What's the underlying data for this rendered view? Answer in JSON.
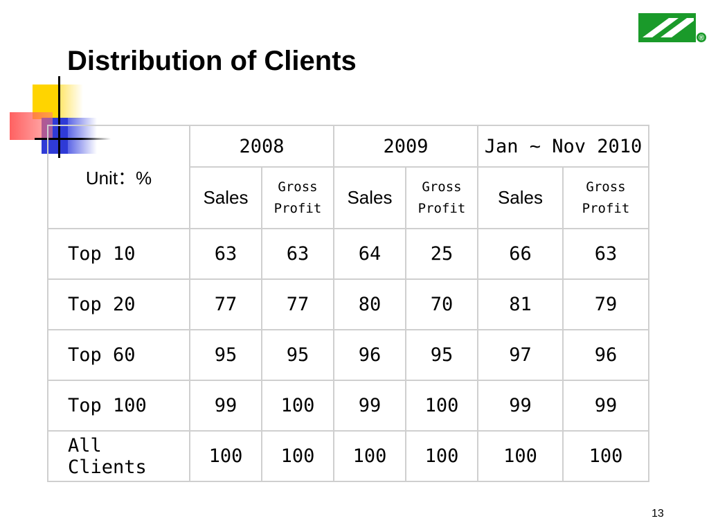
{
  "slide": {
    "title": "Distribution of Clients",
    "page_number": "13"
  },
  "logo": {
    "icon": "company-logo-icon",
    "color": "#1a9a2a",
    "mark": "®"
  },
  "table": {
    "unit_label": "Unit：%",
    "years": [
      "2008",
      "2009",
      "Jan ~ Nov 2010"
    ],
    "sub_headers": {
      "sales": "Sales",
      "gross_line1": "Gross",
      "gross_line2": "Profit"
    },
    "rows": [
      {
        "label": "Top 10",
        "values": [
          "63",
          "63",
          "64",
          "25",
          "66",
          "63"
        ]
      },
      {
        "label": "Top 20",
        "values": [
          "77",
          "77",
          "80",
          "70",
          "81",
          "79"
        ]
      },
      {
        "label": "Top 60",
        "values": [
          "95",
          "95",
          "96",
          "95",
          "97",
          "96"
        ]
      },
      {
        "label": "Top 100",
        "values": [
          "99",
          "100",
          "99",
          "100",
          "99",
          "99"
        ]
      },
      {
        "label": "All Clients",
        "values": [
          "100",
          "100",
          "100",
          "100",
          "100",
          "100"
        ]
      }
    ]
  }
}
